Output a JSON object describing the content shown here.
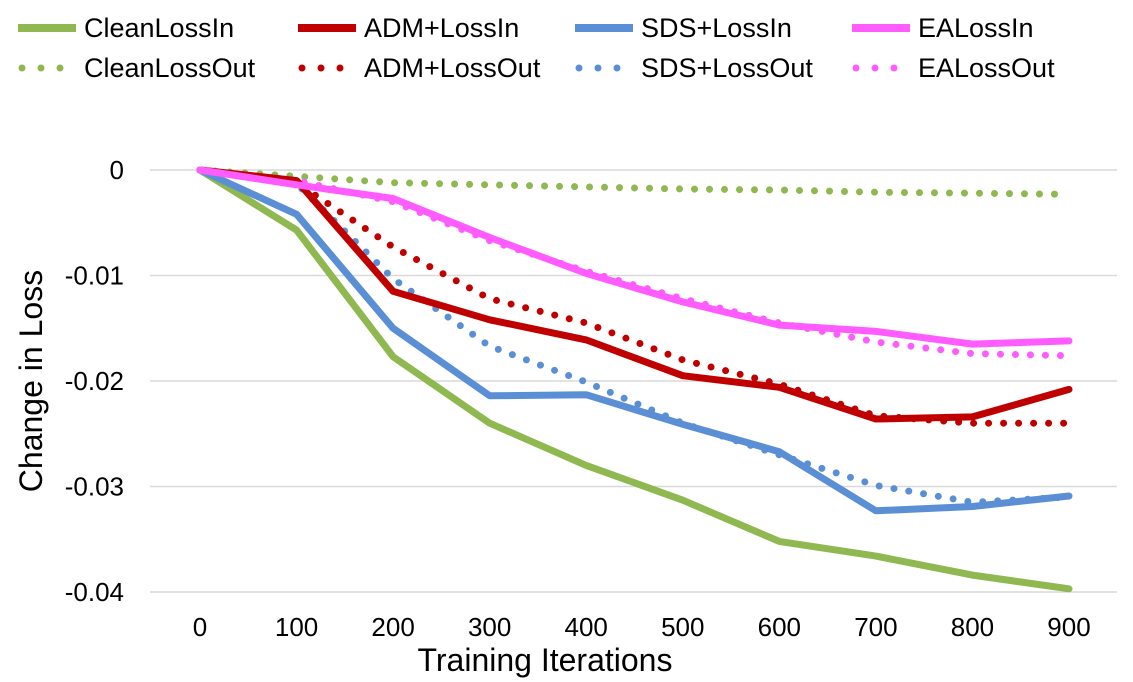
{
  "chart_data": {
    "type": "line",
    "xlabel": "Training Iterations",
    "ylabel": "Change in Loss",
    "x": [
      0,
      100,
      200,
      300,
      400,
      500,
      600,
      700,
      800,
      900
    ],
    "x_tick_labels": [
      "0",
      "100",
      "200",
      "300",
      "400",
      "500",
      "600",
      "700",
      "800",
      "900"
    ],
    "y_ticks": [
      0,
      -0.01,
      -0.02,
      -0.03,
      -0.04
    ],
    "y_tick_labels": [
      "0",
      "-0.01",
      "-0.02",
      "-0.03",
      "-0.04"
    ],
    "ylim": [
      -0.04,
      0
    ],
    "grid": "horizontal",
    "legend_position": "top",
    "series": [
      {
        "name": "CleanLossIn",
        "color": "#8fb850",
        "style": "solid",
        "values": [
          0,
          -0.0057,
          -0.0177,
          -0.024,
          -0.028,
          -0.0313,
          -0.0352,
          -0.0366,
          -0.0384,
          -0.0397
        ]
      },
      {
        "name": "ADM+LossIn",
        "color": "#c00000",
        "style": "solid",
        "values": [
          0,
          -0.001,
          -0.0115,
          -0.0142,
          -0.0161,
          -0.0195,
          -0.0206,
          -0.0236,
          -0.0234,
          -0.0208
        ]
      },
      {
        "name": "SDS+LossIn",
        "color": "#5b8fd5",
        "style": "solid",
        "values": [
          0,
          -0.0042,
          -0.015,
          -0.0214,
          -0.0213,
          -0.0241,
          -0.0267,
          -0.0323,
          -0.0319,
          -0.0309
        ]
      },
      {
        "name": "EALossIn",
        "color": "#ff5cff",
        "style": "solid",
        "values": [
          0,
          -0.0014,
          -0.0027,
          -0.0064,
          -0.0098,
          -0.0125,
          -0.0147,
          -0.0153,
          -0.0165,
          -0.0162
        ]
      },
      {
        "name": "CleanLossOut",
        "color": "#8fb850",
        "style": "dotted",
        "values": [
          0,
          -0.0006,
          -0.0012,
          -0.0014,
          -0.0016,
          -0.0018,
          -0.0019,
          -0.0021,
          -0.0022,
          -0.0023
        ]
      },
      {
        "name": "ADM+LossOut",
        "color": "#c00000",
        "style": "dotted",
        "values": [
          0,
          -0.0012,
          -0.0073,
          -0.0122,
          -0.0145,
          -0.018,
          -0.0203,
          -0.0233,
          -0.024,
          -0.024
        ]
      },
      {
        "name": "SDS+LossOut",
        "color": "#5b8fd5",
        "style": "dotted",
        "values": [
          0,
          -0.0013,
          -0.0103,
          -0.0167,
          -0.0201,
          -0.024,
          -0.027,
          -0.0299,
          -0.0315,
          -0.031
        ]
      },
      {
        "name": "EALossOut",
        "color": "#ff5cff",
        "style": "dotted",
        "values": [
          0,
          -0.001,
          -0.003,
          -0.0067,
          -0.0096,
          -0.0122,
          -0.0145,
          -0.0163,
          -0.0174,
          -0.0176
        ]
      }
    ]
  }
}
